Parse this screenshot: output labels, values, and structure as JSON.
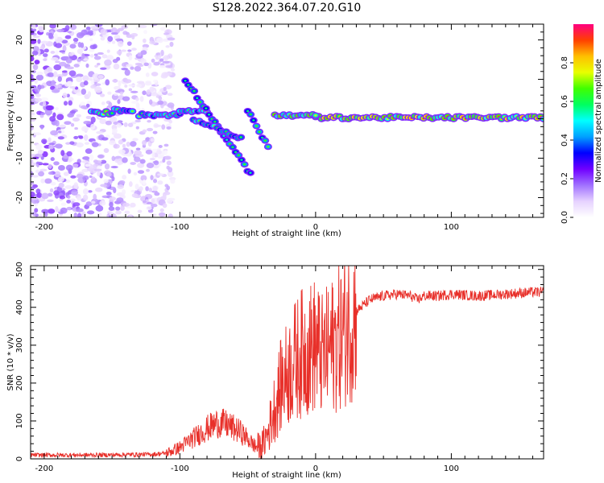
{
  "figure_title": "S128.2022.364.07.20.G10",
  "chart_data": [
    {
      "type": "heatmap",
      "title": "",
      "xlabel": "Height of straight line (km)",
      "ylabel": "Frequency (Hz)",
      "xlim": [
        -210,
        168
      ],
      "ylim": [
        -25,
        24
      ],
      "xticks": [
        -200,
        -100,
        0,
        100
      ],
      "yticks": [
        -20,
        -10,
        0,
        10,
        20
      ],
      "colorbar": {
        "label": "Normalized spectral amplitude",
        "range": [
          0,
          1
        ],
        "ticks": [
          0.0,
          0.2,
          0.4,
          0.6,
          0.8
        ],
        "tick_labels": [
          "0.0",
          "0.2",
          "0.4",
          "0.6",
          "0.8"
        ],
        "colormap": [
          "#ffffff",
          "#e6d2ff",
          "#a070ff",
          "#7000ff",
          "#0000ff",
          "#00a0ff",
          "#00ffff",
          "#00ff60",
          "#40ff00",
          "#e8ff00",
          "#ffc000",
          "#ff4000",
          "#ff0080"
        ]
      },
      "features": [
        {
          "name": "carrier",
          "x_range": [
            0,
            168
          ],
          "freq_hz": 0.3,
          "amplitude": 0.55
        },
        {
          "name": "segment",
          "x_range": [
            -165,
            -150
          ],
          "freq_hz": 1.5,
          "amplitude": 0.4
        },
        {
          "name": "segment",
          "x_range": [
            -148,
            -135
          ],
          "freq_hz": 2.2,
          "amplitude": 0.3
        },
        {
          "name": "segment",
          "x_range": [
            -130,
            -100
          ],
          "freq_hz": 1.0,
          "amplitude": 0.3
        },
        {
          "name": "segment",
          "x_range": [
            -100,
            -80
          ],
          "freq_hz": 2.0,
          "amplitude": 0.3
        },
        {
          "name": "descending-branch",
          "x_range": [
            -96,
            -48
          ],
          "freq_hz_range": [
            10,
            -14
          ],
          "amplitude": 0.25
        },
        {
          "name": "branch",
          "x_range": [
            -90,
            -55
          ],
          "freq_hz_range": [
            0,
            -5
          ],
          "amplitude": 0.3
        },
        {
          "name": "branch",
          "x_range": [
            -50,
            -35
          ],
          "freq_hz_range": [
            2,
            -7
          ],
          "amplitude": 0.3
        },
        {
          "name": "segment",
          "x_range": [
            -30,
            0
          ],
          "freq_hz": 0.8,
          "amplitude": 0.45
        }
      ],
      "noise": {
        "x_range": [
          -210,
          -110
        ],
        "freq_range_hz": [
          -25,
          24
        ],
        "amplitude_range": [
          0.02,
          0.2
        ]
      }
    },
    {
      "type": "line",
      "title": "",
      "xlabel": "Height of straight line (km)",
      "ylabel": "SNR (10 * v/v)",
      "xlim": [
        -210,
        168
      ],
      "ylim": [
        0,
        510
      ],
      "xticks": [
        -200,
        -100,
        0,
        100
      ],
      "yticks": [
        0,
        100,
        200,
        300,
        400,
        500
      ],
      "series": [
        {
          "color": "#e8302a",
          "x": [
            -210,
            -160,
            -120,
            -110,
            -100,
            -90,
            -80,
            -72,
            -65,
            -55,
            -45,
            -40,
            -35,
            -30,
            -25,
            -20,
            -15,
            -10,
            -5,
            0,
            5,
            10,
            15,
            20,
            25,
            30,
            40,
            50,
            60,
            70,
            75,
            80,
            90,
            100,
            120,
            140,
            160,
            168
          ],
          "y": [
            10,
            10,
            12,
            15,
            30,
            55,
            80,
            95,
            90,
            70,
            35,
            30,
            70,
            140,
            200,
            230,
            260,
            280,
            290,
            300,
            270,
            290,
            310,
            330,
            360,
            390,
            420,
            430,
            435,
            430,
            420,
            430,
            430,
            435,
            430,
            435,
            440,
            440
          ]
        }
      ]
    }
  ]
}
